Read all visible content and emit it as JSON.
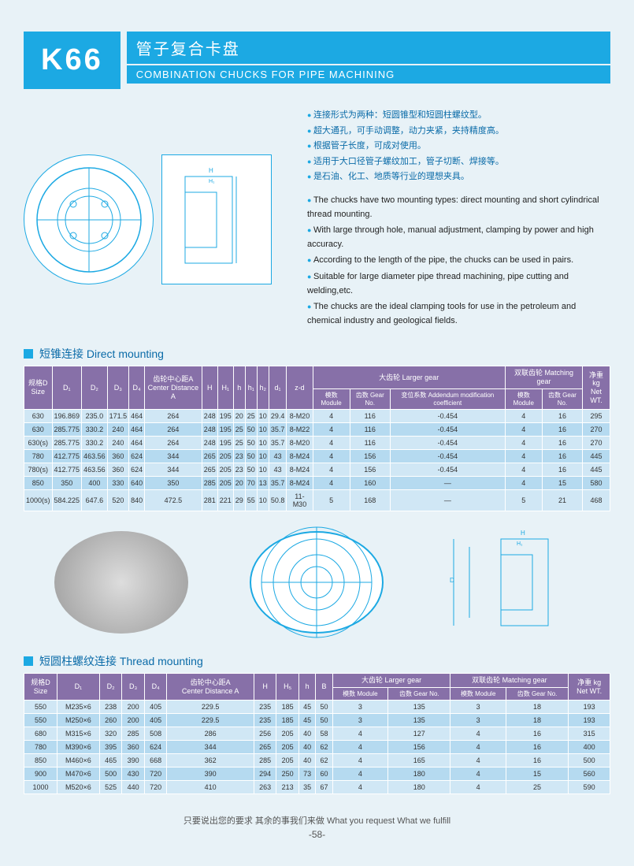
{
  "header": {
    "code": "K66",
    "title_cn": "管子复合卡盘",
    "title_en": "COMBINATION CHUCKS FOR PIPE MACHINING"
  },
  "bullets_cn": [
    "连接形式为两种：短圆锥型和短圆柱螺纹型。",
    "超大通孔，可手动调整，动力夹紧，夹持精度高。",
    "根据管子长度，可成对使用。",
    "适用于大口径管子螺纹加工，管子切断、焊接等。",
    "是石油、化工、地质等行业的理想夹具。"
  ],
  "bullets_en": [
    "The chucks have two mounting types: direct mounting and short cylindrical thread mounting.",
    "With large through hole, manual adjustment, clamping by power and high accuracy.",
    "According to the length of the pipe, the chucks can be used in pairs.",
    "Suitable for large diameter pipe thread machining, pipe cutting and welding,etc.",
    "The chucks are the ideal clamping tools for use in the petroleum and chemical industry and geological fields."
  ],
  "section1": "短锥连接  Direct mounting",
  "section2": "短圆柱螺纹连接  Thread mounting",
  "table1": {
    "headers1": [
      "规格D\nSize",
      "D₁",
      "D₂",
      "D₃",
      "D₄",
      "齿轮中心距A\nCenter Distance A",
      "H",
      "H₁",
      "h",
      "h₁",
      "h₂",
      "d₁",
      "z-d",
      "大齿轮 Larger gear",
      "双联齿轮 Matching gear",
      "净重 kg\nNet WT."
    ],
    "headers2_lg": [
      "模数 Module",
      "齿数 Gear No.",
      "变位系数 Addendum modification coefficient"
    ],
    "headers2_mg": [
      "模数 Module",
      "齿数 Gear No."
    ],
    "rows": [
      [
        "630",
        "196.869",
        "235.0",
        "171.5",
        "464",
        "264",
        "248",
        "195",
        "20",
        "25",
        "10",
        "29.4",
        "8-M20",
        "4",
        "116",
        "-0.454",
        "4",
        "16",
        "295"
      ],
      [
        "630",
        "285.775",
        "330.2",
        "240",
        "464",
        "264",
        "248",
        "195",
        "25",
        "50",
        "10",
        "35.7",
        "8-M22",
        "4",
        "116",
        "-0.454",
        "4",
        "16",
        "270"
      ],
      [
        "630(s)",
        "285.775",
        "330.2",
        "240",
        "464",
        "264",
        "248",
        "195",
        "25",
        "50",
        "10",
        "35.7",
        "8-M20",
        "4",
        "116",
        "-0.454",
        "4",
        "16",
        "270"
      ],
      [
        "780",
        "412.775",
        "463.56",
        "360",
        "624",
        "344",
        "265",
        "205",
        "23",
        "50",
        "10",
        "43",
        "8-M24",
        "4",
        "156",
        "-0.454",
        "4",
        "16",
        "445"
      ],
      [
        "780(s)",
        "412.775",
        "463.56",
        "360",
        "624",
        "344",
        "265",
        "205",
        "23",
        "50",
        "10",
        "43",
        "8-M24",
        "4",
        "156",
        "-0.454",
        "4",
        "16",
        "445"
      ],
      [
        "850",
        "350",
        "400",
        "330",
        "640",
        "350",
        "285",
        "205",
        "20",
        "70",
        "13",
        "35.7",
        "8-M24",
        "4",
        "160",
        "—",
        "4",
        "15",
        "580"
      ],
      [
        "1000(s)",
        "584.225",
        "647.6",
        "520",
        "840",
        "472.5",
        "281",
        "221",
        "29",
        "55",
        "10",
        "50.8",
        "11-M30",
        "5",
        "168",
        "—",
        "5",
        "21",
        "468"
      ]
    ]
  },
  "table2": {
    "headers1": [
      "规格D\nSize",
      "D₁",
      "D₂",
      "D₃",
      "D₄",
      "齿轮中心距A\nCenter Distance A",
      "H",
      "H₅",
      "h",
      "B",
      "大齿轮 Larger gear",
      "双联齿轮 Matching gear",
      "净重 kg\nNet WT."
    ],
    "headers2_lg": [
      "模数 Module",
      "齿数 Gear No."
    ],
    "headers2_mg": [
      "模数 Module",
      "齿数 Gear No."
    ],
    "rows": [
      [
        "550",
        "M235×6",
        "238",
        "200",
        "405",
        "229.5",
        "235",
        "185",
        "45",
        "50",
        "3",
        "135",
        "3",
        "18",
        "193"
      ],
      [
        "550",
        "M250×6",
        "260",
        "200",
        "405",
        "229.5",
        "235",
        "185",
        "45",
        "50",
        "3",
        "135",
        "3",
        "18",
        "193"
      ],
      [
        "680",
        "M315×6",
        "320",
        "285",
        "508",
        "286",
        "256",
        "205",
        "40",
        "58",
        "4",
        "127",
        "4",
        "16",
        "315"
      ],
      [
        "780",
        "M390×6",
        "395",
        "360",
        "624",
        "344",
        "265",
        "205",
        "40",
        "62",
        "4",
        "156",
        "4",
        "16",
        "400"
      ],
      [
        "850",
        "M460×6",
        "465",
        "390",
        "668",
        "362",
        "285",
        "205",
        "40",
        "62",
        "4",
        "165",
        "4",
        "16",
        "500"
      ],
      [
        "900",
        "M470×6",
        "500",
        "430",
        "720",
        "390",
        "294",
        "250",
        "73",
        "60",
        "4",
        "180",
        "4",
        "15",
        "560"
      ],
      [
        "1000",
        "M520×6",
        "525",
        "440",
        "720",
        "410",
        "263",
        "213",
        "35",
        "67",
        "4",
        "180",
        "4",
        "25",
        "590"
      ]
    ]
  },
  "footer": {
    "tagline": "只要说出您的要求  其余的事我们来做  What you request  What we fulfill",
    "pagenum": "-58-"
  }
}
